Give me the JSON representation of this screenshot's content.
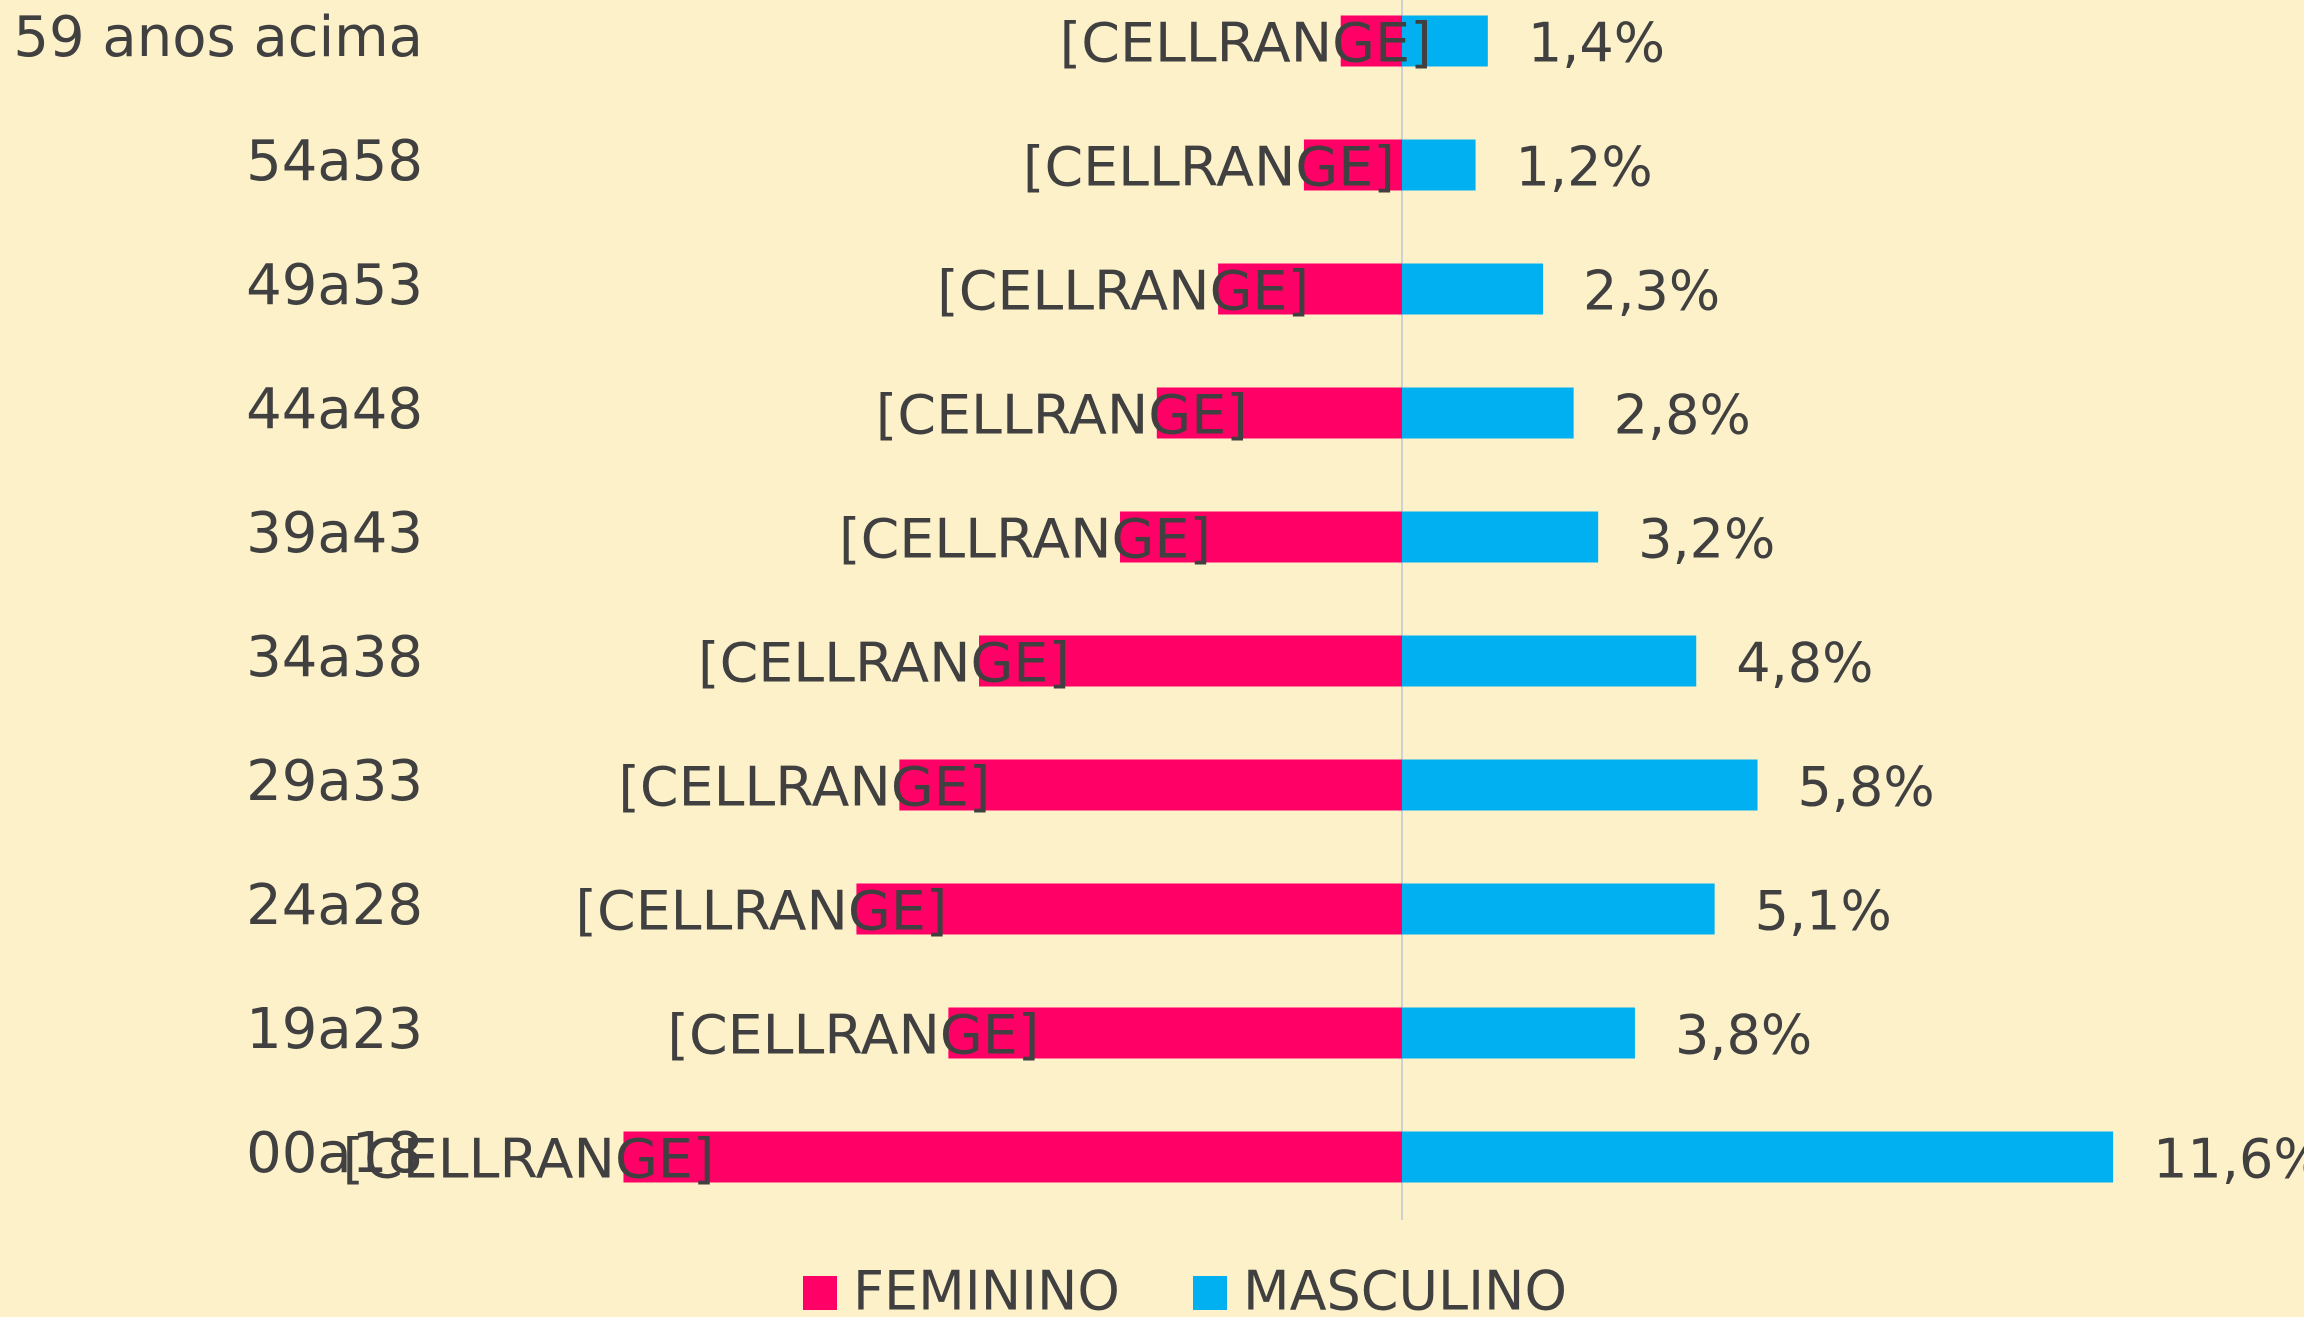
{
  "chart_data": {
    "type": "pyramid",
    "categories": [
      "59 anos acima",
      "54a58",
      "49a53",
      "44a48",
      "39a43",
      "34a38",
      "29a33",
      "24a28",
      "19a23",
      "00a18"
    ],
    "series": [
      {
        "name": "FEMININO",
        "color": "#ff0066",
        "values": [
          1.0,
          1.6,
          3.0,
          4.0,
          4.6,
          6.9,
          8.2,
          8.9,
          7.4,
          12.7
        ],
        "value_labels": [
          "[CELLRANGE]",
          "[CELLRANGE]",
          "[CELLRANGE]",
          "[CELLRANGE]",
          "[CELLRANGE]",
          "[CELLRANGE]",
          "[CELLRANGE]",
          "[CELLRANGE]",
          "[CELLRANGE]",
          "[CELLRANGE]"
        ]
      },
      {
        "name": "MASCULINO",
        "color": "#00b0f0",
        "values": [
          1.4,
          1.2,
          2.3,
          2.8,
          3.2,
          4.8,
          5.8,
          5.1,
          3.8,
          11.6
        ],
        "value_labels": [
          "1,4%",
          "1,2%",
          "2,3%",
          "2,8%",
          "3,2%",
          "4,8%",
          "5,8%",
          "5,1%",
          "3,8%",
          "11,6%"
        ]
      }
    ]
  }
}
